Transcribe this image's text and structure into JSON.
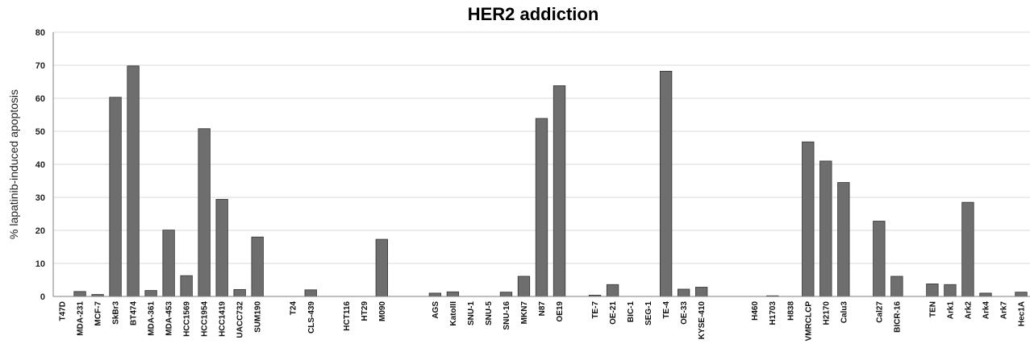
{
  "chart_data": {
    "type": "bar",
    "title": "HER2 addiction",
    "xlabel": "",
    "ylabel": "% lapatinib-induced apoptosis",
    "ylim": [
      0,
      80
    ],
    "yticks": [
      0,
      10,
      20,
      30,
      40,
      50,
      60,
      70,
      80
    ],
    "grid": true,
    "legend": "none",
    "bar_color": "#6e6e6e",
    "categories": [
      "T47D",
      "MDA-231",
      "MCF-7",
      "SkBr3",
      "BT474",
      "MDA-361",
      "MDA-453",
      "HCC1569",
      "HCC1954",
      "HCC1419",
      "UACC732",
      "SUM190",
      "",
      "T24",
      "CLS-439",
      "",
      "HCT116",
      "HT29",
      "M090",
      "",
      "",
      "AGS",
      "KatoIII",
      "SNU-1",
      "SNU-5",
      "SNU-16",
      "MKN7",
      "N87",
      "OE19",
      "",
      "TE-7",
      "OE-21",
      "BIC-1",
      "SEG-1",
      "TE-4",
      "OE-33",
      "KYSE-410",
      "",
      "",
      "H460",
      "H1703",
      "H838",
      "VMRCLCP",
      "H2170",
      "Calu3",
      "",
      "Cal27",
      "BICR-16",
      "",
      "TEN",
      "Ark1",
      "Ark2",
      "Ark4",
      "Ark7",
      "Hec1A"
    ],
    "values": [
      0,
      1.5,
      0.6,
      60.3,
      69.8,
      1.8,
      20.1,
      6.3,
      50.8,
      29.4,
      2.1,
      18.0,
      null,
      0,
      2.0,
      null,
      0,
      0,
      17.3,
      null,
      null,
      1.0,
      1.4,
      0,
      0,
      1.3,
      6.1,
      53.9,
      63.8,
      null,
      0.4,
      3.6,
      0,
      0,
      68.2,
      2.2,
      2.8,
      null,
      null,
      0,
      0.2,
      0,
      46.8,
      41.0,
      34.5,
      null,
      22.8,
      6.1,
      null,
      3.8,
      3.6,
      28.5,
      1.0,
      0,
      1.3
    ]
  }
}
